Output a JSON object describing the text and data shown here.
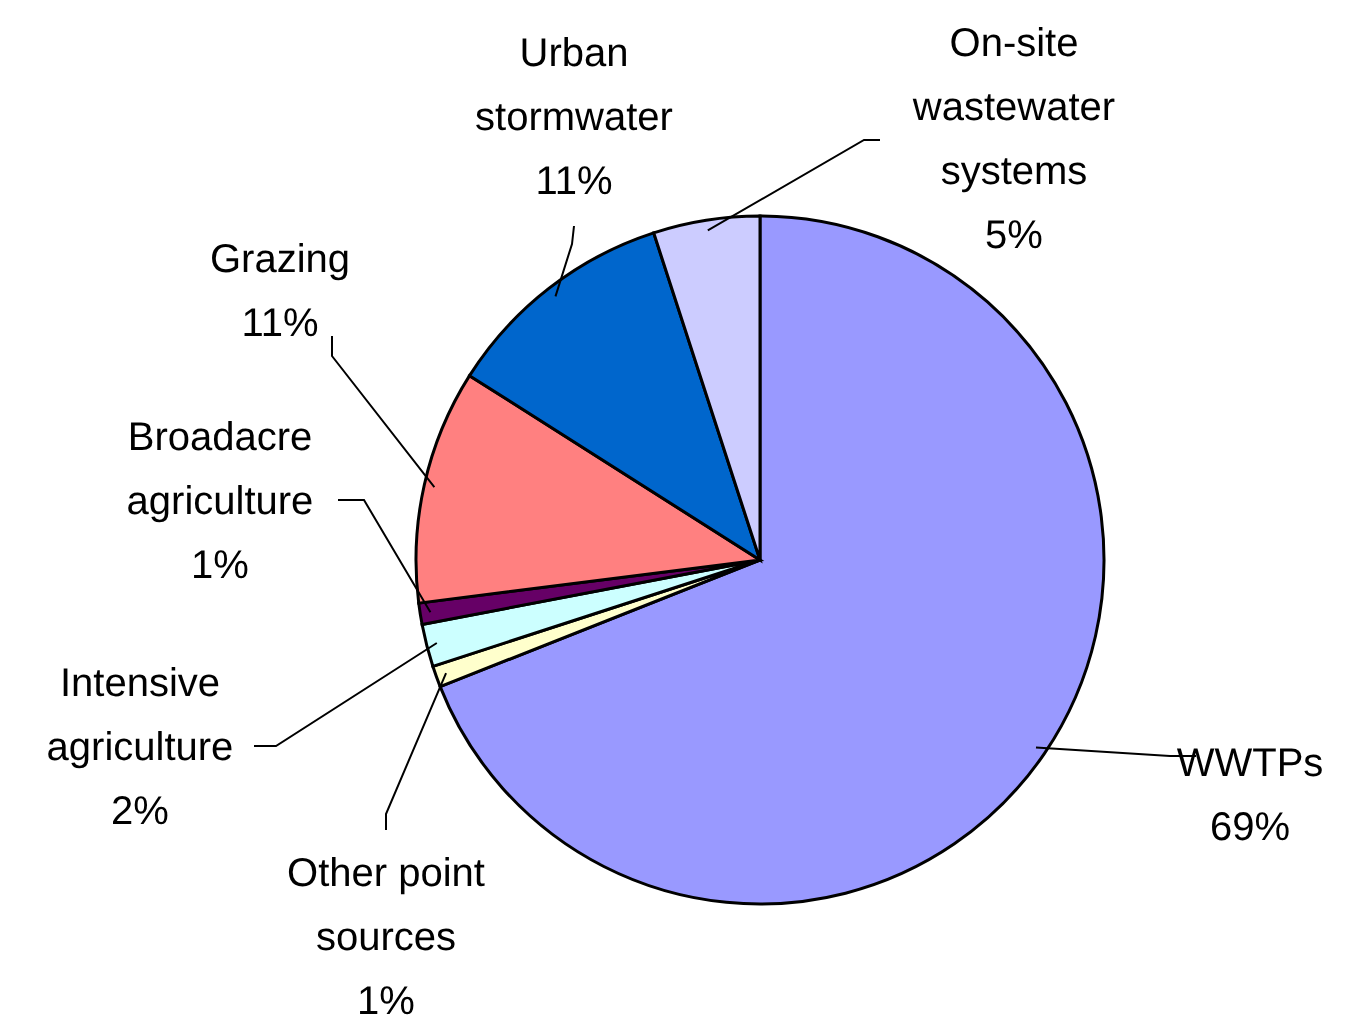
{
  "chart_data": {
    "type": "pie",
    "categories": [
      "WWTPs",
      "Other point sources",
      "Intensive agriculture",
      "Broadacre agriculture",
      "Grazing",
      "Urban stormwater",
      "On-site wastewater systems"
    ],
    "values": [
      69,
      1,
      2,
      1,
      11,
      11,
      5
    ],
    "colors": [
      "#9999ff",
      "#ffffcc",
      "#ccffff",
      "#660066",
      "#ff8080",
      "#0066cc",
      "#ccccff"
    ],
    "value_labels": [
      "69%",
      "1%",
      "2%",
      "1%",
      "11%",
      "11%",
      "5%"
    ]
  }
}
